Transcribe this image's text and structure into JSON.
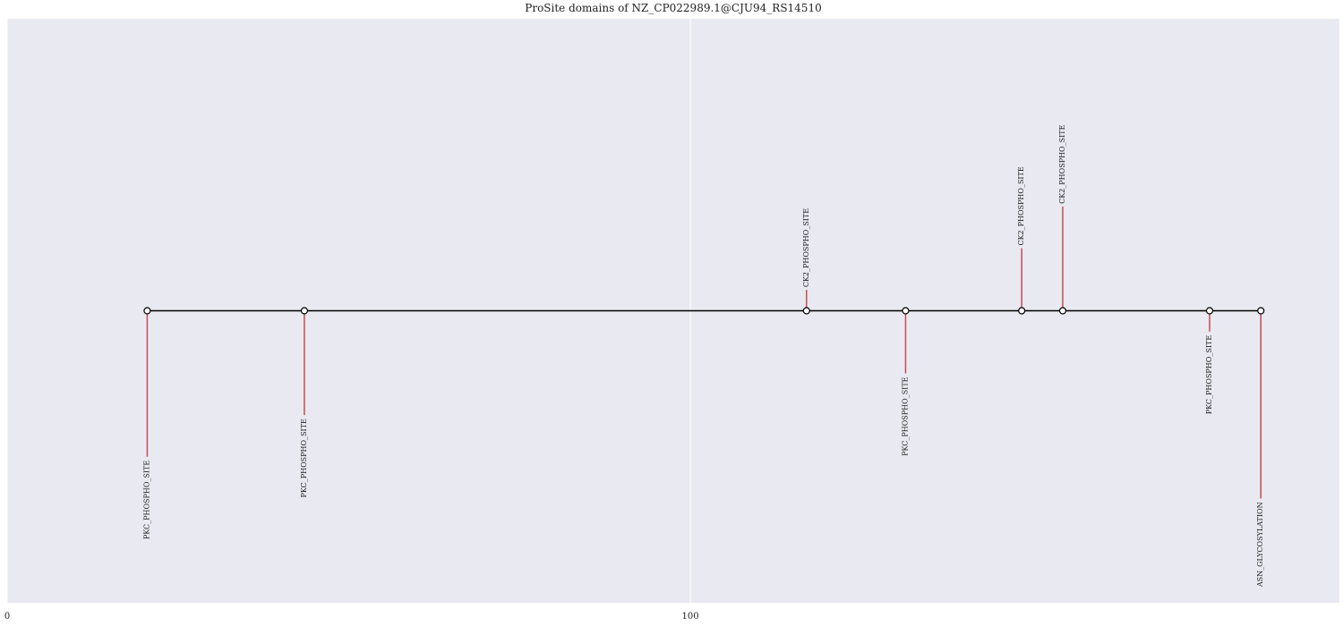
{
  "chart_data": {
    "type": "lollipop",
    "title": "ProSite domains of NZ_CP022989.1@CJU94_RS14510",
    "xlabel": "",
    "ylabel": "",
    "xlim": [
      0,
      195
    ],
    "ylim": [
      -1.4,
      1.4
    ],
    "xticks": [
      0,
      100
    ],
    "xtick_labels": [
      "0",
      "100"
    ],
    "grid": true,
    "colors": {
      "background": "#E9E9F1",
      "grid": "#ffffff",
      "backbone": "#000000",
      "stem": "#C44E52",
      "marker_face": "#ffffff",
      "marker_edge": "#000000"
    },
    "backbone": {
      "start": 20.5,
      "end": 183.5
    },
    "sites": [
      {
        "label": "PKC_PHOSPHO_SITE",
        "position": 20.5,
        "height": -0.7
      },
      {
        "label": "PKC_PHOSPHO_SITE",
        "position": 43.5,
        "height": -0.5
      },
      {
        "label": "CK2_PHOSPHO_SITE",
        "position": 117,
        "height": 0.1
      },
      {
        "label": "PKC_PHOSPHO_SITE",
        "position": 131.5,
        "height": -0.3
      },
      {
        "label": "CK2_PHOSPHO_SITE",
        "position": 148.5,
        "height": 0.3
      },
      {
        "label": "CK2_PHOSPHO_SITE",
        "position": 154.5,
        "height": 0.5
      },
      {
        "label": "PKC_PHOSPHO_SITE",
        "position": 176,
        "height": -0.1
      },
      {
        "label": "ASN_GLYCOSYLATION",
        "position": 183.5,
        "height": -0.9
      }
    ]
  }
}
